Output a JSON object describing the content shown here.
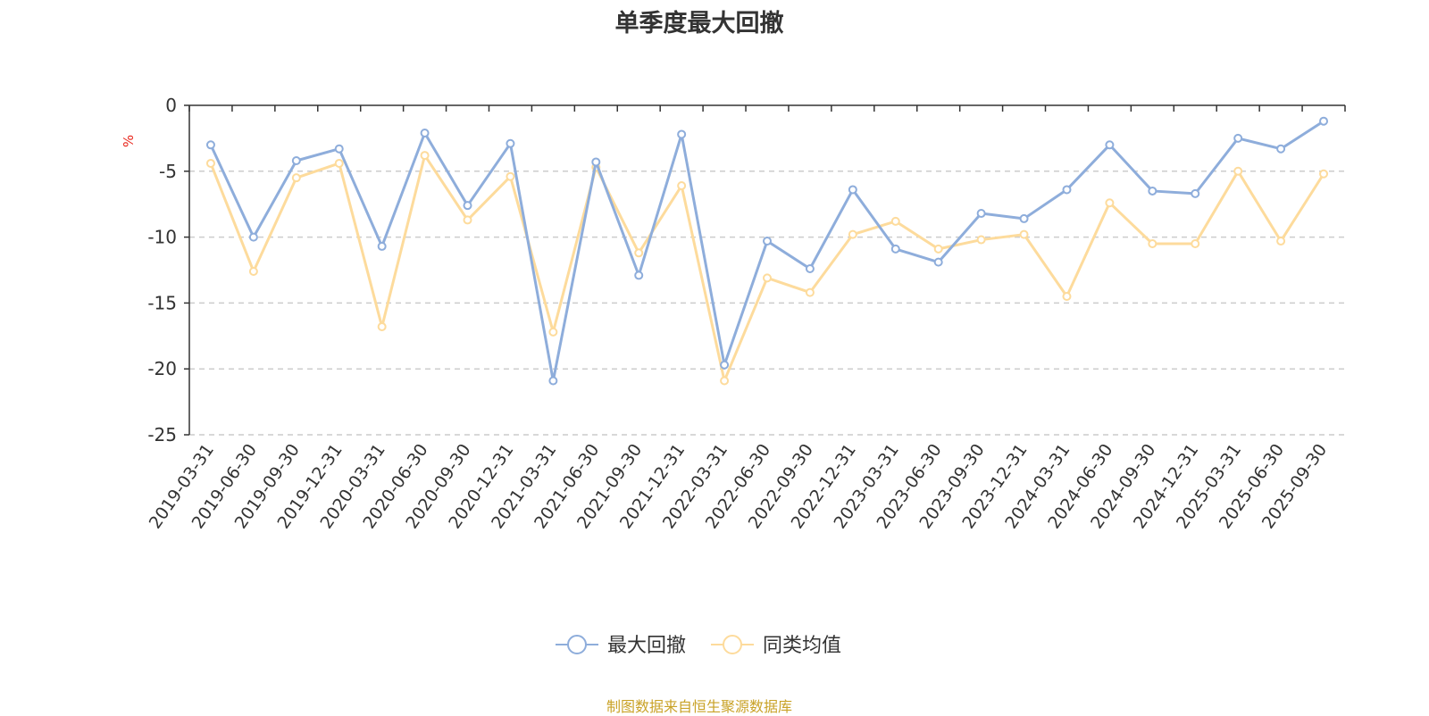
{
  "chart_data": {
    "type": "line",
    "title": "单季度最大回撤",
    "ylabel": "%",
    "ylim": [
      -25,
      0
    ],
    "yticks": [
      0,
      -5,
      -10,
      -15,
      -20,
      -25
    ],
    "grid": true,
    "legend_position": "bottom-center",
    "x": [
      "2019-03-31",
      "2019-06-30",
      "2019-09-30",
      "2019-12-31",
      "2020-03-31",
      "2020-06-30",
      "2020-09-30",
      "2020-12-31",
      "2021-03-31",
      "2021-06-30",
      "2021-09-30",
      "2021-12-31",
      "2022-03-31",
      "2022-06-30",
      "2022-09-30",
      "2022-12-31",
      "2023-03-31",
      "2023-06-30",
      "2023-09-30",
      "2023-12-31",
      "2024-03-31",
      "2024-06-30",
      "2024-09-30",
      "2024-12-31",
      "2025-03-31",
      "2025-06-30",
      "2025-09-30"
    ],
    "series": [
      {
        "name": "最大回撤",
        "color": "#8eaddb",
        "values": [
          -3.0,
          -10.0,
          -4.2,
          -3.3,
          -10.7,
          -2.1,
          -7.6,
          -2.9,
          -20.9,
          -4.3,
          -12.9,
          -2.2,
          -19.7,
          -10.3,
          -12.4,
          -6.4,
          -10.9,
          -11.9,
          -8.2,
          -8.6,
          -6.4,
          -3.0,
          -6.5,
          -6.7,
          -2.5,
          -3.3,
          -1.2
        ]
      },
      {
        "name": "同类均值",
        "color": "#fddb9c",
        "values": [
          -4.4,
          -12.6,
          -5.5,
          -4.4,
          -16.8,
          -3.8,
          -8.7,
          -5.4,
          -17.2,
          -4.7,
          -11.2,
          -6.1,
          -20.9,
          -13.1,
          -14.2,
          -9.8,
          -8.8,
          -10.9,
          -10.2,
          -9.8,
          -14.5,
          -7.4,
          -10.5,
          -10.5,
          -5.0,
          -10.3,
          -5.2
        ]
      }
    ]
  },
  "footer": {
    "source": "制图数据来自恒生聚源数据库"
  }
}
